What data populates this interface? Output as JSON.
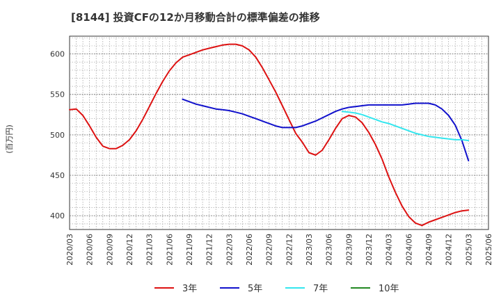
{
  "chart_data": {
    "type": "line",
    "title": "[8144]  投資CFの12か月移動合計の標準偏差の推移",
    "ylabel": "(百万円)",
    "xlabel": "",
    "ylim": [
      383,
      622
    ],
    "y_ticks": [
      400,
      450,
      500,
      550,
      600
    ],
    "x_ticks": [
      "2020/03",
      "2020/06",
      "2020/09",
      "2020/12",
      "2021/03",
      "2021/06",
      "2021/09",
      "2021/12",
      "2022/03",
      "2022/06",
      "2022/09",
      "2022/12",
      "2023/03",
      "2023/06",
      "2023/09",
      "2023/12",
      "2024/03",
      "2024/06",
      "2024/09",
      "2024/12",
      "2025/03",
      "2025/06"
    ],
    "grid": true,
    "legend_position": "bottom",
    "series": [
      {
        "name": "3年",
        "color": "#dd1111",
        "x": [
          "2020/03",
          "2020/04",
          "2020/05",
          "2020/06",
          "2020/07",
          "2020/08",
          "2020/09",
          "2020/10",
          "2020/11",
          "2020/12",
          "2021/01",
          "2021/02",
          "2021/03",
          "2021/04",
          "2021/05",
          "2021/06",
          "2021/07",
          "2021/08",
          "2021/09",
          "2021/10",
          "2021/11",
          "2021/12",
          "2022/01",
          "2022/02",
          "2022/03",
          "2022/04",
          "2022/05",
          "2022/06",
          "2022/07",
          "2022/08",
          "2022/09",
          "2022/10",
          "2022/11",
          "2022/12",
          "2023/01",
          "2023/02",
          "2023/03",
          "2023/04",
          "2023/05",
          "2023/06",
          "2023/07",
          "2023/08",
          "2023/09",
          "2023/10",
          "2023/11",
          "2023/12",
          "2024/01",
          "2024/02",
          "2024/03",
          "2024/04",
          "2024/05",
          "2024/06",
          "2024/07",
          "2024/08",
          "2024/09",
          "2024/10",
          "2024/11",
          "2024/12",
          "2025/01",
          "2025/02",
          "2025/03"
        ],
        "values": [
          531,
          532,
          524,
          511,
          497,
          486,
          483,
          483,
          487,
          494,
          505,
          519,
          535,
          551,
          566,
          579,
          589,
          596,
          599,
          602,
          605,
          607,
          609,
          611,
          612,
          612,
          610,
          605,
          596,
          583,
          568,
          553,
          536,
          519,
          502,
          491,
          478,
          475,
          481,
          494,
          508,
          520,
          524,
          522,
          515,
          503,
          488,
          470,
          448,
          429,
          412,
          399,
          391,
          388,
          392,
          395,
          398,
          401,
          404,
          406,
          407
        ]
      },
      {
        "name": "5年",
        "color": "#1111cc",
        "x": [
          "2021/08",
          "2021/09",
          "2021/10",
          "2021/11",
          "2021/12",
          "2022/01",
          "2022/02",
          "2022/03",
          "2022/04",
          "2022/05",
          "2022/06",
          "2022/07",
          "2022/08",
          "2022/09",
          "2022/10",
          "2022/11",
          "2022/12",
          "2023/01",
          "2023/02",
          "2023/03",
          "2023/04",
          "2023/05",
          "2023/06",
          "2023/07",
          "2023/08",
          "2023/09",
          "2023/10",
          "2023/11",
          "2023/12",
          "2024/01",
          "2024/02",
          "2024/03",
          "2024/04",
          "2024/05",
          "2024/06",
          "2024/07",
          "2024/08",
          "2024/09",
          "2024/10",
          "2024/11",
          "2024/12",
          "2025/01",
          "2025/02",
          "2025/03"
        ],
        "values": [
          544,
          541,
          538,
          536,
          534,
          532,
          531,
          530,
          528,
          526,
          523,
          520,
          517,
          514,
          511,
          509,
          509,
          509,
          511,
          514,
          517,
          521,
          525,
          529,
          532,
          534,
          535,
          536,
          537,
          537,
          537,
          537,
          537,
          537,
          538,
          539,
          539,
          539,
          537,
          532,
          524,
          512,
          493,
          468
        ]
      },
      {
        "name": "7年",
        "color": "#33e6ee",
        "x": [
          "2023/08",
          "2023/09",
          "2023/10",
          "2023/11",
          "2023/12",
          "2024/01",
          "2024/02",
          "2024/03",
          "2024/04",
          "2024/05",
          "2024/06",
          "2024/07",
          "2024/08",
          "2024/09",
          "2024/10",
          "2024/11",
          "2024/12",
          "2025/01",
          "2025/02",
          "2025/03"
        ],
        "values": [
          529,
          528,
          527,
          525,
          522,
          519,
          516,
          514,
          511,
          508,
          505,
          502,
          500,
          498,
          497,
          496,
          495,
          494,
          494,
          493
        ]
      },
      {
        "name": "10年",
        "color": "#228822",
        "x": [],
        "values": []
      }
    ]
  }
}
